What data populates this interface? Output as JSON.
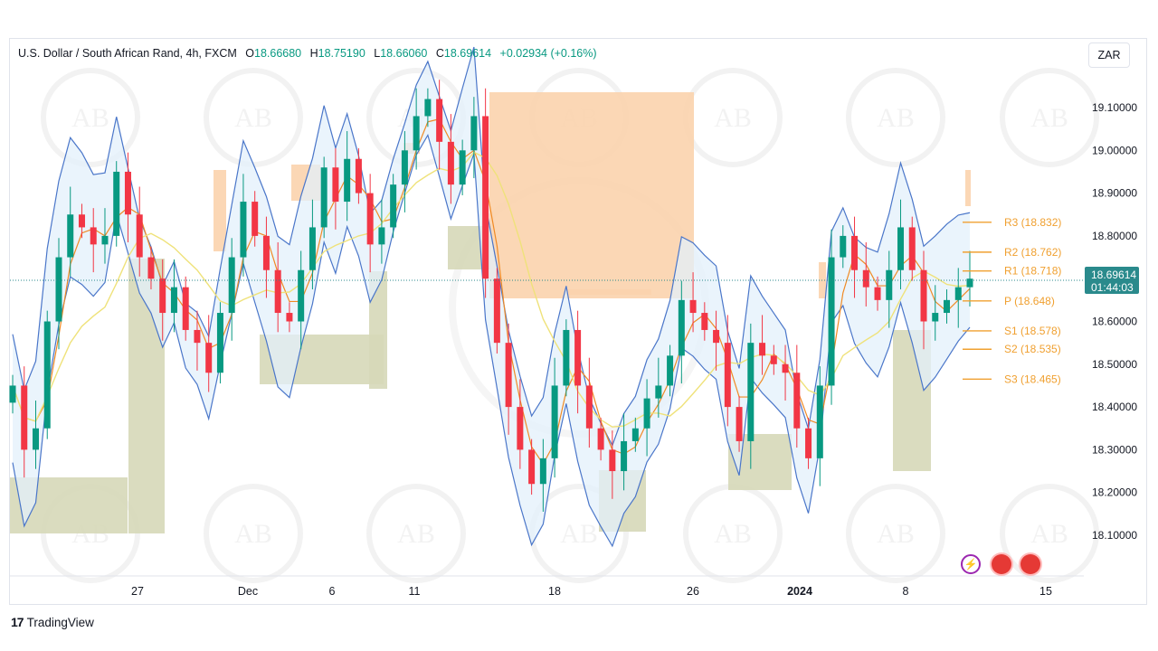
{
  "header": {
    "symbol": "U.S. Dollar / South African Rand, 4h, FXCM",
    "o_label": "O",
    "o_value": "18.66680",
    "h_label": "H",
    "h_value": "18.75190",
    "l_label": "L",
    "l_value": "18.66060",
    "c_label": "C",
    "c_value": "18.69614",
    "change": "+0.02934 (+0.16%)"
  },
  "currency_button": "ZAR",
  "branding": {
    "logo_mark": "17",
    "name": "TradingView"
  },
  "watermark_text": "AB",
  "colors": {
    "up": "#089981",
    "down": "#f23645",
    "bb_band": "#4a76c9",
    "bb_fill": "#e3f0fb",
    "ma_orange": "#f08a24",
    "ma_yellow": "#efe27a",
    "pivot": "#f0a030",
    "supply": "#fbd3ad",
    "demand": "#d6d8b8",
    "last_price_bg": "#2a8a8c"
  },
  "chart_data": {
    "type": "candlestick",
    "y_ticks": [
      "19.10000",
      "19.00000",
      "18.90000",
      "18.80000",
      "18.60000",
      "18.50000",
      "18.40000",
      "18.30000",
      "18.20000",
      "18.10000"
    ],
    "y_tick_values": [
      19.1,
      19.0,
      18.9,
      18.8,
      18.6,
      18.5,
      18.4,
      18.3,
      18.2,
      18.1
    ],
    "x_ticks": [
      {
        "label": "27",
        "bold": false
      },
      {
        "label": "Dec",
        "bold": false
      },
      {
        "label": "6",
        "bold": false
      },
      {
        "label": "11",
        "bold": false
      },
      {
        "label": "18",
        "bold": false
      },
      {
        "label": "26",
        "bold": false
      },
      {
        "label": "2024",
        "bold": true
      },
      {
        "label": "8",
        "bold": false
      },
      {
        "label": "15",
        "bold": false
      }
    ],
    "last_price": {
      "value": "18.69614",
      "countdown": "01:44:03"
    },
    "pivot_levels": [
      {
        "label": "R3 (18.832)",
        "value": 18.832
      },
      {
        "label": "R2 (18.762)",
        "value": 18.762
      },
      {
        "label": "R1 (18.718)",
        "value": 18.718
      },
      {
        "label": "P (18.648)",
        "value": 18.648
      },
      {
        "label": "S1 (18.578)",
        "value": 18.578
      },
      {
        "label": "S2 (18.535)",
        "value": 18.535
      },
      {
        "label": "S3 (18.465)",
        "value": 18.465
      }
    ],
    "close_path": [
      18.45,
      18.3,
      18.35,
      18.6,
      18.75,
      18.85,
      18.82,
      18.78,
      18.8,
      18.95,
      18.85,
      18.75,
      18.7,
      18.62,
      18.68,
      18.58,
      18.55,
      18.48,
      18.62,
      18.75,
      18.88,
      18.8,
      18.72,
      18.62,
      18.6,
      18.72,
      18.82,
      18.96,
      18.88,
      18.98,
      18.9,
      18.78,
      18.82,
      18.92,
      19.0,
      19.08,
      19.12,
      19.02,
      18.92,
      19.0,
      19.08,
      18.7,
      18.55,
      18.4,
      18.3,
      18.22,
      18.28,
      18.45,
      18.58,
      18.45,
      18.35,
      18.3,
      18.25,
      18.32,
      18.35,
      18.42,
      18.45,
      18.52,
      18.65,
      18.62,
      18.58,
      18.55,
      18.4,
      18.32,
      18.55,
      18.52,
      18.5,
      18.48,
      18.35,
      18.28,
      18.45,
      18.75,
      18.8,
      18.72,
      18.68,
      18.65,
      18.72,
      18.82,
      18.72,
      18.6,
      18.62,
      18.65,
      18.68,
      18.7
    ]
  }
}
